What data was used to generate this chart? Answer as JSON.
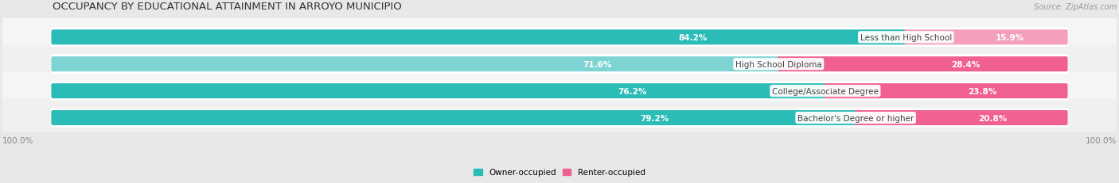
{
  "title": "OCCUPANCY BY EDUCATIONAL ATTAINMENT IN ARROYO MUNICIPIO",
  "source": "Source: ZipAtlas.com",
  "categories": [
    "Less than High School",
    "High School Diploma",
    "College/Associate Degree",
    "Bachelor's Degree or higher"
  ],
  "owner_values": [
    84.2,
    71.6,
    76.2,
    79.2
  ],
  "renter_values": [
    15.9,
    28.4,
    23.8,
    20.8
  ],
  "owner_colors": [
    "#2BBCB8",
    "#7ED4D2",
    "#2BBCB8",
    "#2BBCB8"
  ],
  "renter_colors": [
    "#F4A0BC",
    "#F06090",
    "#F06090",
    "#F06090"
  ],
  "owner_label": "Owner-occupied",
  "renter_label": "Renter-occupied",
  "axis_label_left": "100.0%",
  "axis_label_right": "100.0%",
  "title_fontsize": 9.5,
  "source_fontsize": 7,
  "bar_label_fontsize": 7.5,
  "category_fontsize": 7.5,
  "legend_fontsize": 7.5,
  "background_color": "#e8e8e8",
  "row_bg_colors": [
    "#f5f5f5",
    "#f0f0f0",
    "#f5f5f5",
    "#f0f0f0"
  ],
  "bar_track_color": "#ffffff"
}
